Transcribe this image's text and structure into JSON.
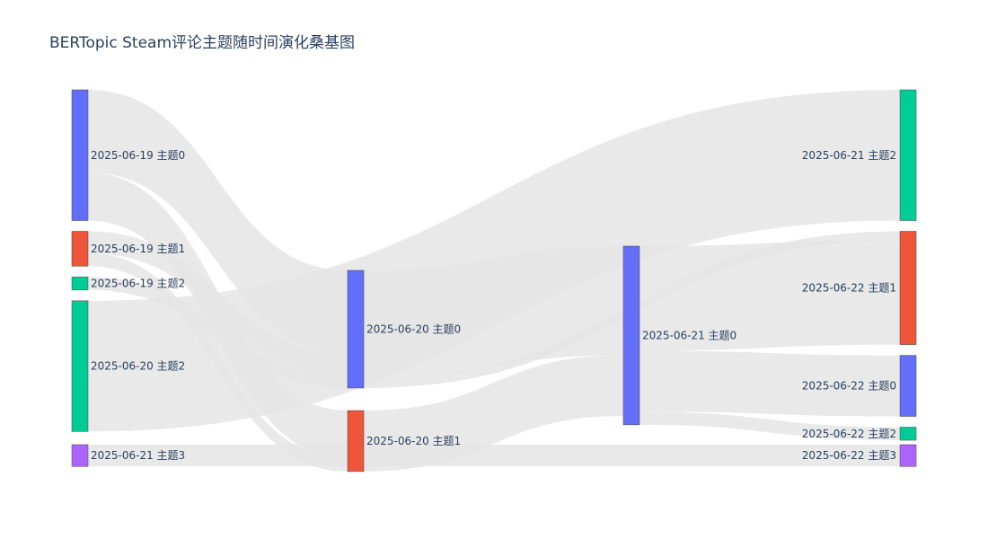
{
  "chart_data": {
    "type": "sankey",
    "title": "BERTopic Steam评论主题随时间演化桑基图",
    "colors": {
      "topic0": "#636efa",
      "topic1": "#ef553b",
      "topic2": "#00cc96",
      "topic3": "#ab63fa",
      "link": "#e5e5e5"
    },
    "nodes": [
      {
        "id": "n19_0",
        "label": "2025-06-19 主题0",
        "color": "#636efa",
        "column": 0
      },
      {
        "id": "n19_1",
        "label": "2025-06-19 主题1",
        "color": "#ef553b",
        "column": 0
      },
      {
        "id": "n19_2",
        "label": "2025-06-19 主题2",
        "color": "#00cc96",
        "column": 0
      },
      {
        "id": "n20_2",
        "label": "2025-06-20 主题2",
        "color": "#00cc96",
        "column": 0
      },
      {
        "id": "n21_3",
        "label": "2025-06-21 主题3",
        "color": "#ab63fa",
        "column": 0
      },
      {
        "id": "n20_0",
        "label": "2025-06-20 主题0",
        "color": "#636efa",
        "column": 1
      },
      {
        "id": "n20_1",
        "label": "2025-06-20 主题1",
        "color": "#ef553b",
        "column": 1
      },
      {
        "id": "n21_0",
        "label": "2025-06-21 主题0",
        "color": "#636efa",
        "column": 2
      },
      {
        "id": "n21_2",
        "label": "2025-06-21 主题2",
        "color": "#00cc96",
        "column": 3
      },
      {
        "id": "n22_1",
        "label": "2025-06-22 主题1",
        "color": "#ef553b",
        "column": 3
      },
      {
        "id": "n22_0",
        "label": "2025-06-22 主题0",
        "color": "#636efa",
        "column": 3
      },
      {
        "id": "n22_2",
        "label": "2025-06-22 主题2",
        "color": "#00cc96",
        "column": 3
      },
      {
        "id": "n22_3",
        "label": "2025-06-22 主题3",
        "color": "#ab63fa",
        "column": 3
      }
    ],
    "links": [
      {
        "source": "n20_2",
        "target": "n21_2",
        "value": 30
      },
      {
        "source": "n19_0",
        "target": "n20_0",
        "value": 19
      },
      {
        "source": "n19_0",
        "target": "n20_1",
        "value": 11
      },
      {
        "source": "n19_1",
        "target": "n20_0",
        "value": 5
      },
      {
        "source": "n19_1",
        "target": "n20_1",
        "value": 3
      },
      {
        "source": "n19_2",
        "target": "n20_0",
        "value": 3
      },
      {
        "source": "n21_3",
        "target": "n22_3",
        "value": 5
      },
      {
        "source": "n20_0",
        "target": "n21_0",
        "value": 25
      },
      {
        "source": "n20_0",
        "target": "n22_1",
        "value": 2
      },
      {
        "source": "n20_1",
        "target": "n21_0",
        "value": 14
      },
      {
        "source": "n21_0",
        "target": "n22_1",
        "value": 24
      },
      {
        "source": "n21_0",
        "target": "n22_0",
        "value": 14
      },
      {
        "source": "n21_0",
        "target": "n22_2",
        "value": 3
      }
    ]
  }
}
